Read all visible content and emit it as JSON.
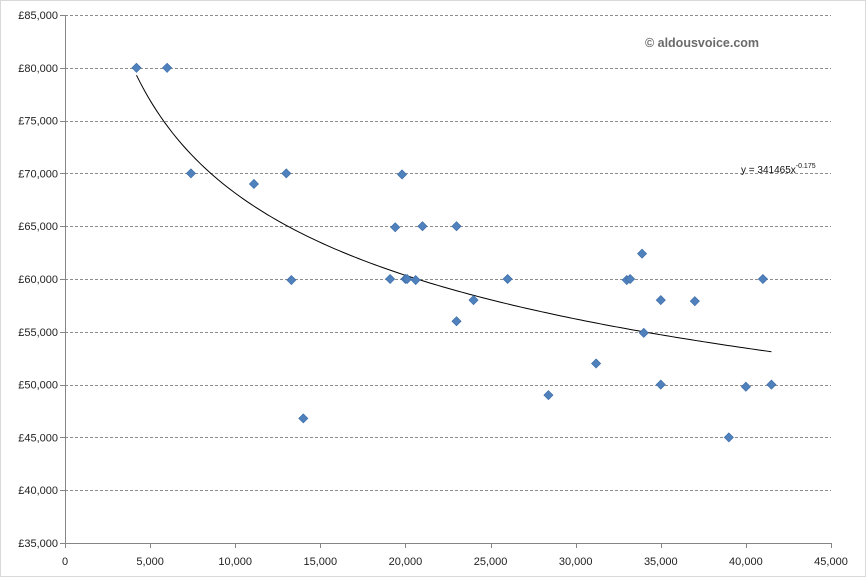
{
  "watermark": "© aldousvoice.com",
  "trendline": {
    "label_main": "y = 341465x",
    "label_exp": "-0.175",
    "coefficient": 341465,
    "exponent": -0.175,
    "x_start": 4200,
    "x_end": 41500
  },
  "chart_data": {
    "type": "scatter",
    "title": "",
    "xlabel": "",
    "ylabel": "",
    "xlim": [
      0,
      45000
    ],
    "ylim": [
      35000,
      85000
    ],
    "grid": "horizontal dashed",
    "marker": "diamond",
    "colors": {
      "marker": "#4f81bd",
      "marker_edge": "#3a6aa5",
      "grid": "#8c8c8c",
      "trend": "#000000",
      "axis": "#868686"
    },
    "x_ticks": [
      0,
      5000,
      10000,
      15000,
      20000,
      25000,
      30000,
      35000,
      40000,
      45000
    ],
    "x_tick_labels": [
      "0",
      "5,000",
      "10,000",
      "15,000",
      "20,000",
      "25,000",
      "30,000",
      "35,000",
      "40,000",
      "45,000"
    ],
    "y_ticks": [
      35000,
      40000,
      45000,
      50000,
      55000,
      60000,
      65000,
      70000,
      75000,
      80000,
      85000
    ],
    "y_tick_labels": [
      "£35,000",
      "£40,000",
      "£45,000",
      "£50,000",
      "£55,000",
      "£60,000",
      "£65,000",
      "£70,000",
      "£75,000",
      "£80,000",
      "£85,000"
    ],
    "points": [
      {
        "x": 4200,
        "y": 80000
      },
      {
        "x": 6000,
        "y": 80000
      },
      {
        "x": 7400,
        "y": 70000
      },
      {
        "x": 11100,
        "y": 69000
      },
      {
        "x": 13000,
        "y": 70000
      },
      {
        "x": 13300,
        "y": 59900
      },
      {
        "x": 14000,
        "y": 46800
      },
      {
        "x": 19100,
        "y": 60000
      },
      {
        "x": 19400,
        "y": 64900
      },
      {
        "x": 19800,
        "y": 69900
      },
      {
        "x": 20000,
        "y": 60000
      },
      {
        "x": 20100,
        "y": 60000
      },
      {
        "x": 20600,
        "y": 59900
      },
      {
        "x": 21000,
        "y": 65000
      },
      {
        "x": 23000,
        "y": 65000
      },
      {
        "x": 23000,
        "y": 56000
      },
      {
        "x": 24000,
        "y": 58000
      },
      {
        "x": 26000,
        "y": 60000
      },
      {
        "x": 28400,
        "y": 49000
      },
      {
        "x": 31200,
        "y": 52000
      },
      {
        "x": 33000,
        "y": 59900
      },
      {
        "x": 33200,
        "y": 60000
      },
      {
        "x": 33900,
        "y": 62400
      },
      {
        "x": 34000,
        "y": 54900
      },
      {
        "x": 35000,
        "y": 58000
      },
      {
        "x": 35000,
        "y": 50000
      },
      {
        "x": 37000,
        "y": 57900
      },
      {
        "x": 39000,
        "y": 45000
      },
      {
        "x": 40000,
        "y": 49800
      },
      {
        "x": 41000,
        "y": 60000
      },
      {
        "x": 41500,
        "y": 50000
      }
    ]
  }
}
